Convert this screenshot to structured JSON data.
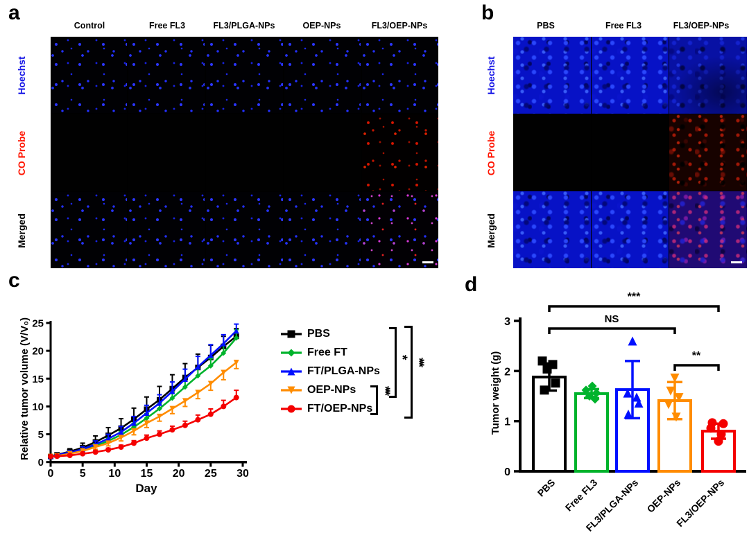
{
  "panel_a": {
    "label": "a",
    "columns": [
      "Control",
      "Free FL3",
      "FL3/PLGA-NPs",
      "OEP-NPs",
      "FL3/OEP-NPs"
    ],
    "rows": [
      {
        "label": "Hoechst",
        "label_color": "#1414e6"
      },
      {
        "label": "CO Probe",
        "label_color": "#ff1400"
      },
      {
        "label": "Merged",
        "label_color": "#000000"
      }
    ],
    "cells": [
      [
        "blue-dots",
        "blue-dots",
        "blue-dots",
        "blue-dots",
        "blue-dots"
      ],
      [
        "black",
        "black",
        "black",
        "black",
        "red-dots"
      ],
      [
        "blue-dots",
        "blue-dots",
        "blue-dots",
        "blue-dots",
        "merged-dots"
      ]
    ],
    "scalebar": {
      "row": 2,
      "col": 4
    }
  },
  "panel_b": {
    "label": "b",
    "columns": [
      "PBS",
      "Free FL3",
      "FL3/OEP-NPs"
    ],
    "rows": [
      {
        "label": "Hoechst",
        "label_color": "#1414e6"
      },
      {
        "label": "CO Probe",
        "label_color": "#ff1400"
      },
      {
        "label": "Merged",
        "label_color": "#000000"
      }
    ],
    "cells": [
      [
        "blue-dense",
        "blue-dense",
        "navy-dense"
      ],
      [
        "black",
        "black",
        "red-dense"
      ],
      [
        "blue-dense",
        "blue-dense",
        "purple-dense"
      ]
    ],
    "scalebar": {
      "row": 2,
      "col": 2
    }
  },
  "panel_c": {
    "label": "c"
  },
  "panel_d": {
    "label": "d"
  },
  "chart_data": [
    {
      "id": "relative-tumor-volume",
      "type": "line",
      "title": "",
      "xlabel": "Day",
      "ylabel": "Relative tumor volume (V/V₀)",
      "xlim": [
        0,
        30
      ],
      "ylim": [
        0,
        25
      ],
      "xticks": [
        0,
        5,
        10,
        15,
        20,
        25,
        30
      ],
      "yticks": [
        0,
        5,
        10,
        15,
        20,
        25
      ],
      "grid": false,
      "legend_position": "right",
      "x": [
        0,
        1,
        3,
        5,
        7,
        9,
        11,
        13,
        15,
        17,
        19,
        21,
        23,
        25,
        27,
        29
      ],
      "series": [
        {
          "name": "PBS",
          "color": "#000000",
          "marker": "square",
          "err_dir": "up",
          "values": [
            1.0,
            1.3,
            1.9,
            2.6,
            3.6,
            4.8,
            6.1,
            7.7,
            9.5,
            11.2,
            13.2,
            15.2,
            17.0,
            18.8,
            20.8,
            22.6
          ],
          "err": [
            0.2,
            0.3,
            0.5,
            0.8,
            1.1,
            1.4,
            1.7,
            2.0,
            2.2,
            2.4,
            2.5,
            2.5,
            2.4,
            2.2,
            1.8,
            1.4
          ]
        },
        {
          "name": "Free FT",
          "color": "#00B32C",
          "marker": "diamond",
          "err_dir": "up",
          "values": [
            1.0,
            1.2,
            1.6,
            2.1,
            2.9,
            3.8,
            4.9,
            6.3,
            7.9,
            9.6,
            11.5,
            13.5,
            15.5,
            17.3,
            19.6,
            22.3
          ],
          "err": [
            0.1,
            0.15,
            0.2,
            0.3,
            0.4,
            0.5,
            0.6,
            0.7,
            0.8,
            0.9,
            1.0,
            1.1,
            1.2,
            1.3,
            1.4,
            1.5
          ]
        },
        {
          "name": "FT/PLGA-NPs",
          "color": "#0010FF",
          "marker": "triangle-up",
          "err_dir": "up",
          "values": [
            1.0,
            1.25,
            1.75,
            2.3,
            3.2,
            4.2,
            5.4,
            7.0,
            8.8,
            10.6,
            12.7,
            14.9,
            17.1,
            19.2,
            21.3,
            23.6
          ],
          "err": [
            0.15,
            0.2,
            0.3,
            0.45,
            0.6,
            0.8,
            1.0,
            1.2,
            1.4,
            1.5,
            1.7,
            1.8,
            1.9,
            1.9,
            1.6,
            1.2
          ]
        },
        {
          "name": "OEP-NPs",
          "color": "#FF8C00",
          "marker": "triangle-down",
          "err_dir": "down",
          "values": [
            1.0,
            1.1,
            1.5,
            2.0,
            2.7,
            3.4,
            4.4,
            5.6,
            7.0,
            8.2,
            9.6,
            11.0,
            12.5,
            14.1,
            16.1,
            17.9
          ],
          "err": [
            0.1,
            0.15,
            0.2,
            0.3,
            0.4,
            0.5,
            0.6,
            0.7,
            0.8,
            0.85,
            0.9,
            1.0,
            1.1,
            1.2,
            1.3,
            1.1
          ]
        },
        {
          "name": "FT/OEP-NPs",
          "color": "#F40000",
          "marker": "circle",
          "err_dir": "up",
          "values": [
            1.0,
            1.05,
            1.2,
            1.5,
            1.8,
            2.2,
            2.7,
            3.4,
            4.3,
            5.0,
            5.8,
            6.6,
            7.6,
            8.6,
            10.0,
            11.6
          ],
          "err": [
            0.1,
            0.1,
            0.15,
            0.2,
            0.25,
            0.3,
            0.35,
            0.45,
            0.55,
            0.6,
            0.65,
            0.75,
            0.85,
            0.95,
            1.1,
            1.3
          ]
        }
      ],
      "significance": [
        {
          "from": "OEP-NPs",
          "to": "FT/OEP-NPs",
          "label": "***"
        },
        {
          "from": "PBS",
          "to": "OEP-NPs",
          "label": "*"
        },
        {
          "from": "PBS",
          "to": "FT/OEP-NPs",
          "label": "***"
        }
      ]
    },
    {
      "id": "tumor-weight",
      "type": "bar",
      "title": "",
      "xlabel": "",
      "ylabel": "Tumor weight (g)",
      "ylim": [
        0,
        3
      ],
      "yticks": [
        0,
        1,
        2,
        3
      ],
      "grid": false,
      "categories": [
        "PBS",
        "Free FL3",
        "FL3/PLGA-NPs",
        "OEP-NPs",
        "FL3/OEP-NPs"
      ],
      "values": [
        1.88,
        1.55,
        1.63,
        1.41,
        0.8
      ],
      "errors": [
        0.27,
        0.09,
        0.57,
        0.37,
        0.15
      ],
      "colors": [
        "#000000",
        "#00B32C",
        "#0010FF",
        "#FF8C00",
        "#F40000"
      ],
      "markers": [
        "square",
        "diamond",
        "triangle-up",
        "triangle-down",
        "circle"
      ],
      "points": [
        [
          2.2,
          2.13,
          2.04,
          1.76,
          1.62
        ],
        [
          1.7,
          1.62,
          1.56,
          1.5,
          1.44
        ],
        [
          2.6,
          1.56,
          1.48,
          1.36,
          1.14
        ],
        [
          1.86,
          1.6,
          1.47,
          1.33,
          1.08
        ],
        [
          0.97,
          0.95,
          0.86,
          0.74,
          0.6
        ]
      ],
      "significance": [
        {
          "from": "PBS",
          "to": "FL3/OEP-NPs",
          "label": "***"
        },
        {
          "from": "PBS",
          "to": "OEP-NPs",
          "label": "NS"
        },
        {
          "from": "OEP-NPs",
          "to": "FL3/OEP-NPs",
          "label": "**"
        }
      ]
    }
  ]
}
